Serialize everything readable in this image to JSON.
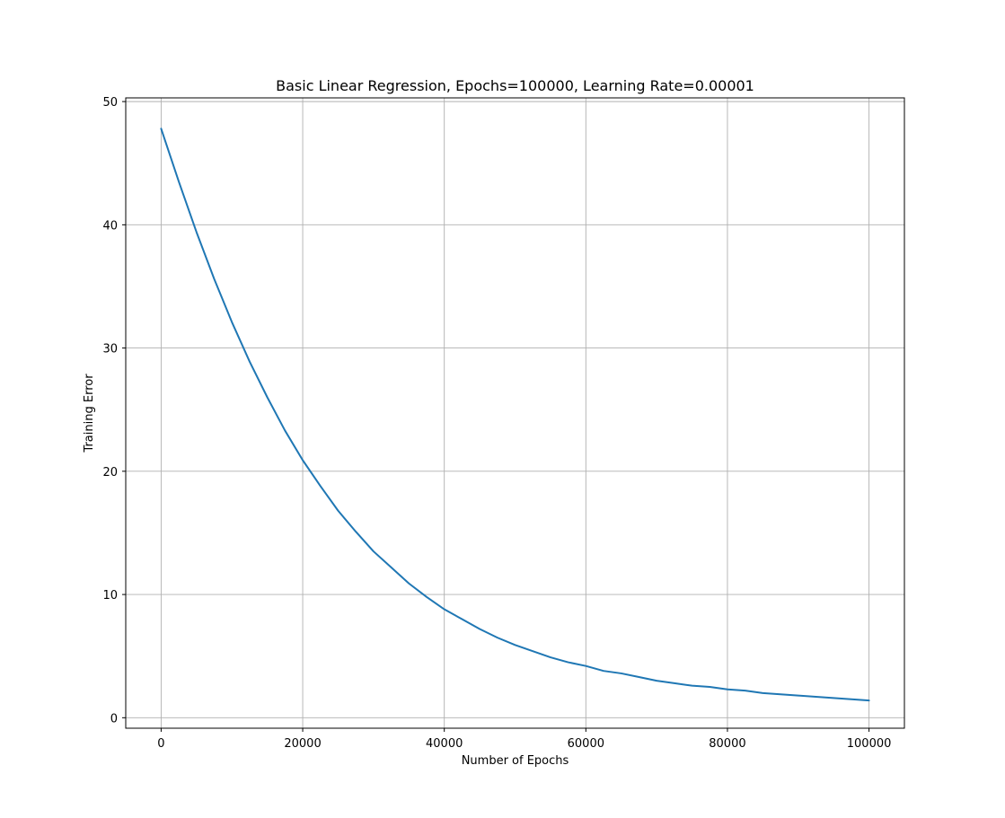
{
  "chart_data": {
    "type": "line",
    "title": "Basic Linear Regression, Epochs=100000, Learning Rate=0.00001",
    "xlabel": "Number of Epochs",
    "ylabel": "Training Error",
    "xlim": [
      -5000,
      105000
    ],
    "ylim": [
      -0.85,
      50.3
    ],
    "xticks": [
      0,
      20000,
      40000,
      60000,
      80000,
      100000
    ],
    "yticks": [
      0,
      10,
      20,
      30,
      40,
      50
    ],
    "grid": true,
    "line_color": "#1f77b4",
    "series": [
      {
        "x": [
          0,
          2500,
          5000,
          7500,
          10000,
          12500,
          15000,
          17500,
          20000,
          22500,
          25000,
          27500,
          30000,
          32500,
          35000,
          37500,
          40000,
          42500,
          45000,
          47500,
          50000,
          52500,
          55000,
          57500,
          60000,
          62500,
          65000,
          67500,
          70000,
          72500,
          75000,
          77500,
          80000,
          82500,
          85000,
          87500,
          90000,
          92500,
          95000,
          97500,
          100000
        ],
        "values": [
          47.8,
          43.5,
          39.4,
          35.6,
          32.1,
          28.9,
          26.0,
          23.3,
          20.9,
          18.8,
          16.8,
          15.1,
          13.5,
          12.2,
          10.9,
          9.8,
          8.8,
          8.0,
          7.2,
          6.5,
          5.9,
          5.4,
          4.9,
          4.5,
          4.2,
          3.8,
          3.6,
          3.3,
          3.0,
          2.8,
          2.6,
          2.5,
          2.3,
          2.2,
          2.0,
          1.9,
          1.8,
          1.7,
          1.6,
          1.5,
          1.4
        ]
      }
    ]
  }
}
